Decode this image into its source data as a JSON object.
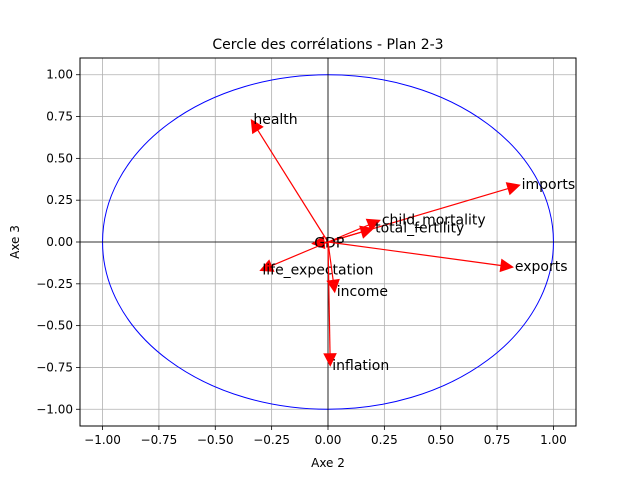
{
  "chart_data": {
    "type": "scatter",
    "title": "Cercle des corrélations - Plan 2-3",
    "xlabel": "Axe 2",
    "ylabel": "Axe 3",
    "xlim": [
      -1.1,
      1.1
    ],
    "ylim": [
      -1.1,
      1.1
    ],
    "xticks": [
      -1.0,
      -0.75,
      -0.5,
      -0.25,
      0.0,
      0.25,
      0.5,
      0.75,
      1.0
    ],
    "yticks": [
      -1.0,
      -0.75,
      -0.5,
      -0.25,
      0.0,
      0.25,
      0.5,
      0.75,
      1.0
    ],
    "xtick_labels": [
      "−1.00",
      "−0.75",
      "−0.50",
      "−0.25",
      "0.00",
      "0.25",
      "0.50",
      "0.75",
      "1.00"
    ],
    "ytick_labels": [
      "−1.00",
      "−0.75",
      "−0.50",
      "−0.25",
      "0.00",
      "0.25",
      "0.50",
      "0.75",
      "1.00"
    ],
    "grid": true,
    "unit_circle": true,
    "vectors": [
      {
        "name": "health",
        "x": -0.34,
        "y": 0.73
      },
      {
        "name": "imports",
        "x": 0.85,
        "y": 0.34
      },
      {
        "name": "child_mortality",
        "x": 0.23,
        "y": 0.13
      },
      {
        "name": "total_fertility",
        "x": 0.2,
        "y": 0.08
      },
      {
        "name": "GDP",
        "x": -0.07,
        "y": -0.01
      },
      {
        "name": "life_expectation",
        "x": -0.3,
        "y": -0.17
      },
      {
        "name": "exports",
        "x": 0.82,
        "y": -0.15
      },
      {
        "name": "income",
        "x": 0.03,
        "y": -0.3
      },
      {
        "name": "inflation",
        "x": 0.01,
        "y": -0.74
      }
    ],
    "colors": {
      "arrow": "#ff0000",
      "circle": "#0000ff",
      "axes_lines": "#000000",
      "grid": "#b0b0b0"
    }
  }
}
